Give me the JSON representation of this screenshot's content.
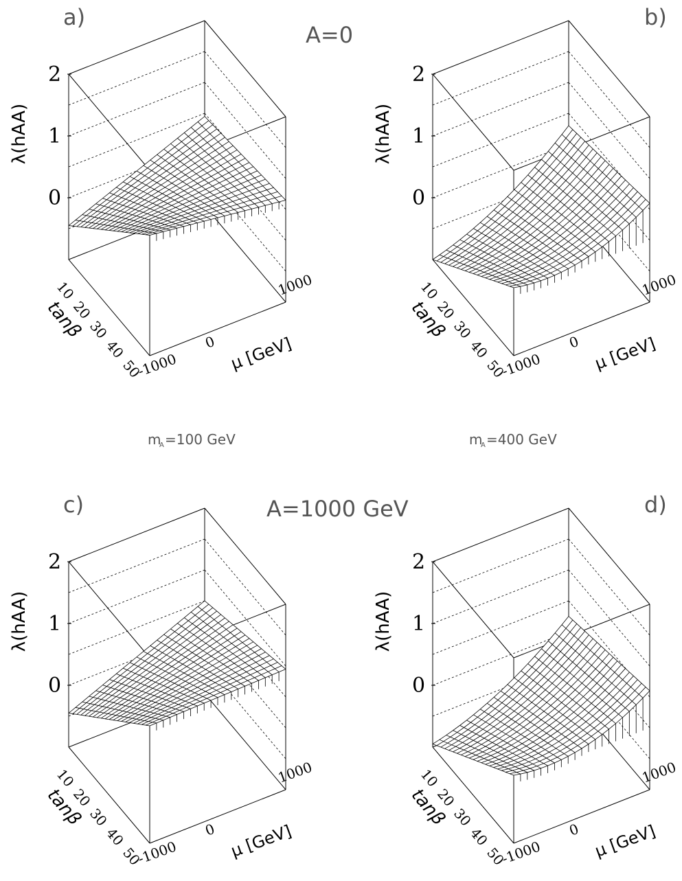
{
  "labels": {
    "top_row_condition": "A=0",
    "bottom_row_condition": "A=1000 GeV",
    "left_column_condition": "m",
    "left_column_condition_sub": "A",
    "left_column_condition_value": "=100 GeV",
    "right_column_condition": "m",
    "right_column_condition_sub": "A",
    "right_column_condition_value": "=400 GeV"
  },
  "chart_data": [
    {
      "type": "surface",
      "panel": "a)",
      "zlabel": "λ(hAA)",
      "xlabel": "μ [GeV]",
      "ylabel": "tanβ",
      "z_ticks": [
        "0",
        "1",
        "2"
      ],
      "x_ticks": [
        "-1000",
        "0",
        "1000"
      ],
      "y_ticks": [
        "10",
        "20",
        "30",
        "40",
        "50"
      ],
      "x_range": [
        -1000,
        1000
      ],
      "y_range": [
        1,
        50
      ],
      "z_range": [
        -1,
        2
      ],
      "surface_z_corners": {
        "mu_min_tb_max": 0.95,
        "mu_max_tb_max": 0.65,
        "mu_min_tb_min": -0.45,
        "mu_max_tb_min": 0.45
      },
      "curvature": 0.0
    },
    {
      "type": "surface",
      "panel": "b)",
      "zlabel": "λ(hAA)",
      "xlabel": "μ [GeV]",
      "ylabel": "tanβ",
      "z_ticks": [
        "0",
        "1",
        "2"
      ],
      "x_ticks": [
        "-1000",
        "0",
        "1000"
      ],
      "y_ticks": [
        "10",
        "20",
        "30",
        "40",
        "50"
      ],
      "x_range": [
        -1000,
        1000
      ],
      "y_range": [
        1,
        50
      ],
      "z_range": [
        -1,
        2
      ],
      "surface_z_corners": {
        "mu_min_tb_max": 0.1,
        "mu_max_tb_max": 0.6,
        "mu_min_tb_min": -1.0,
        "mu_max_tb_min": 0.3
      },
      "curvature": 0.25
    },
    {
      "type": "surface",
      "panel": "c)",
      "zlabel": "λ(hAA)",
      "xlabel": "μ [GeV]",
      "ylabel": "tanβ",
      "z_ticks": [
        "0",
        "1",
        "2"
      ],
      "x_ticks": [
        "-1000",
        "0",
        "1000"
      ],
      "y_ticks": [
        "10",
        "20",
        "30",
        "40",
        "50"
      ],
      "x_range": [
        -1000,
        1000
      ],
      "y_range": [
        1,
        50
      ],
      "z_range": [
        -1,
        2
      ],
      "surface_z_corners": {
        "mu_min_tb_max": 0.9,
        "mu_max_tb_max": 0.95,
        "mu_min_tb_min": -0.45,
        "mu_max_tb_min": 0.5
      },
      "curvature": 0.0
    },
    {
      "type": "surface",
      "panel": "d)",
      "zlabel": "λ(hAA)",
      "xlabel": "μ [GeV]",
      "ylabel": "tanβ",
      "z_ticks": [
        "0",
        "1",
        "2"
      ],
      "x_ticks": [
        "-1000",
        "0",
        "1000"
      ],
      "y_ticks": [
        "10",
        "20",
        "30",
        "40",
        "50"
      ],
      "x_range": [
        -1000,
        1000
      ],
      "y_range": [
        1,
        50
      ],
      "z_range": [
        -1,
        2
      ],
      "surface_z_corners": {
        "mu_min_tb_max": 0.1,
        "mu_max_tb_max": 0.6,
        "mu_min_tb_min": -0.95,
        "mu_max_tb_min": 0.25
      },
      "curvature": 0.25
    }
  ]
}
